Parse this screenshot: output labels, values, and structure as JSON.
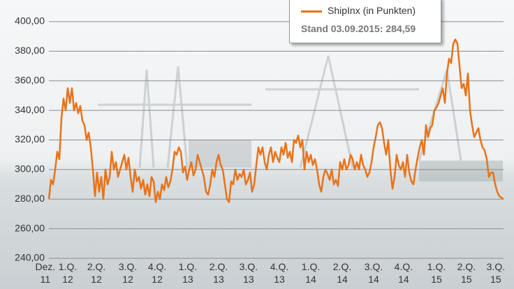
{
  "chart_data": {
    "type": "line",
    "annotation": "Stand 03.09.2015: 284,59",
    "xlim": [
      0,
      217
    ],
    "xticks": [
      {
        "value": -1.7,
        "label": "Dez. 11"
      },
      {
        "value": 9,
        "label": "1.Q. 12"
      },
      {
        "value": 22.7,
        "label": "2.Q. 12"
      },
      {
        "value": 37.7,
        "label": "3.Q. 12"
      },
      {
        "value": 51.7,
        "label": "4.Q. 12"
      },
      {
        "value": 66.3,
        "label": "1.Q. 13"
      },
      {
        "value": 81,
        "label": "2.Q. 13"
      },
      {
        "value": 95.3,
        "label": "3.Q. 13"
      },
      {
        "value": 110,
        "label": "4.Q. 13"
      },
      {
        "value": 125,
        "label": "1.Q. 14"
      },
      {
        "value": 140,
        "label": "2.Q. 14"
      },
      {
        "value": 155,
        "label": "3.Q. 14"
      },
      {
        "value": 169.3,
        "label": "4.Q. 14"
      },
      {
        "value": 185,
        "label": "1.Q. 15"
      },
      {
        "value": 199.3,
        "label": "2.Q. 15"
      },
      {
        "value": 213.3,
        "label": "3.Q. 15"
      }
    ],
    "ylim": [
      240,
      400
    ],
    "yticks": [
      {
        "value": 240,
        "label": "240,00"
      },
      {
        "value": 260,
        "label": "260,00"
      },
      {
        "value": 280,
        "label": "280,00"
      },
      {
        "value": 300,
        "label": "300,00"
      },
      {
        "value": 320,
        "label": "320,00"
      },
      {
        "value": 340,
        "label": "340,00"
      },
      {
        "value": 360,
        "label": "360,00"
      },
      {
        "value": 380,
        "label": "380,00"
      },
      {
        "value": 400,
        "label": "400,00"
      }
    ],
    "grid": true,
    "series": [
      {
        "name": "ShipInx (in Punkten)",
        "color": "#e8731a",
        "values": [
          280,
          293,
          290,
          300,
          312,
          307,
          335,
          348,
          340,
          355,
          345,
          355,
          340,
          345,
          338,
          343,
          333,
          330,
          320,
          325,
          315,
          300,
          282,
          298,
          285,
          295,
          280,
          300,
          290,
          295,
          312,
          300,
          305,
          295,
          300,
          305,
          310,
          300,
          308,
          295,
          285,
          300,
          292,
          295,
          287,
          293,
          283,
          290,
          282,
          295,
          292,
          278,
          285,
          280,
          290,
          286,
          295,
          288,
          292,
          300,
          312,
          310,
          315,
          312,
          298,
          302,
          293,
          300,
          305,
          296,
          300,
          310,
          305,
          300,
          295,
          285,
          283,
          290,
          300,
          295,
          305,
          310,
          303,
          300,
          290,
          280,
          278,
          292,
          290,
          300,
          293,
          297,
          295,
          300,
          290,
          293,
          298,
          285,
          290,
          303,
          315,
          310,
          315,
          305,
          300,
          310,
          315,
          305,
          312,
          308,
          305,
          315,
          310,
          318,
          308,
          312,
          305,
          320,
          318,
          323,
          315,
          320,
          300,
          312,
          305,
          310,
          303,
          307,
          300,
          290,
          285,
          295,
          300,
          297,
          293,
          300,
          290,
          293,
          289,
          305,
          300,
          307,
          300,
          303,
          310,
          307,
          300,
          305,
          300,
          310,
          303,
          300,
          295,
          298,
          305,
          315,
          322,
          330,
          332,
          328,
          318,
          310,
          320,
          300,
          287,
          295,
          310,
          303,
          300,
          305,
          295,
          310,
          298,
          292,
          290,
          300,
          308,
          315,
          320,
          310,
          330,
          322,
          328,
          330,
          340,
          342,
          345,
          350,
          355,
          345,
          365,
          375,
          372,
          385,
          388,
          385,
          370,
          355,
          358,
          350,
          365,
          340,
          330,
          322,
          325,
          328,
          320,
          315,
          313,
          307,
          295,
          298,
          298,
          290,
          285,
          282,
          281,
          280
        ]
      }
    ]
  }
}
